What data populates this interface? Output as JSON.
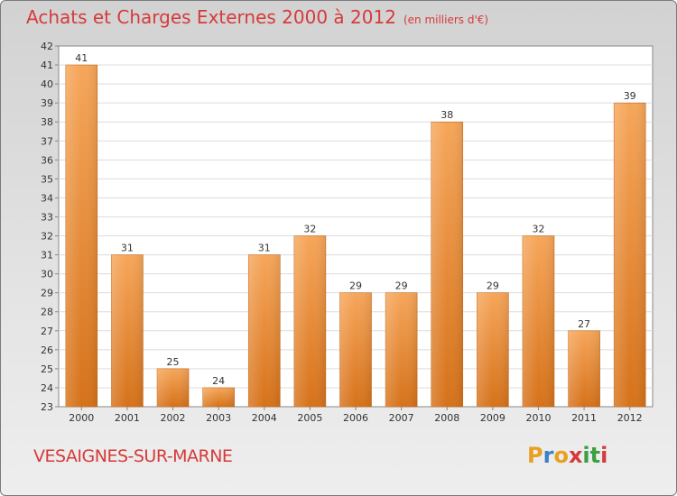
{
  "page": {
    "title": "Achats et Charges Externes 2000 à 2012",
    "subtitle": "(en milliers d'€)",
    "commune": "VESAIGNES-SUR-MARNE",
    "logo": {
      "letters": [
        "P",
        "r",
        "o",
        "x",
        "i",
        "t",
        "i"
      ],
      "colors": [
        "#e8a020",
        "#3a7fc8",
        "#e8a020",
        "#d63a3a",
        "#3aa040",
        "#3aa040",
        "#d63a3a"
      ]
    }
  },
  "chart_data": {
    "type": "bar",
    "title": "Achats et Charges Externes 2000 à 2012",
    "subtitle": "(en milliers d'€)",
    "categories": [
      "2000",
      "2001",
      "2002",
      "2003",
      "2004",
      "2005",
      "2006",
      "2007",
      "2008",
      "2009",
      "2010",
      "2011",
      "2012"
    ],
    "values": [
      41,
      31,
      25,
      24,
      31,
      32,
      29,
      29,
      38,
      29,
      32,
      27,
      39
    ],
    "ylim": [
      23,
      42
    ],
    "yticks": [
      23,
      24,
      25,
      26,
      27,
      28,
      29,
      30,
      31,
      32,
      33,
      34,
      35,
      36,
      37,
      38,
      39,
      40,
      41,
      42
    ],
    "grid": "horizontal",
    "bar_color": "#f28c28"
  }
}
